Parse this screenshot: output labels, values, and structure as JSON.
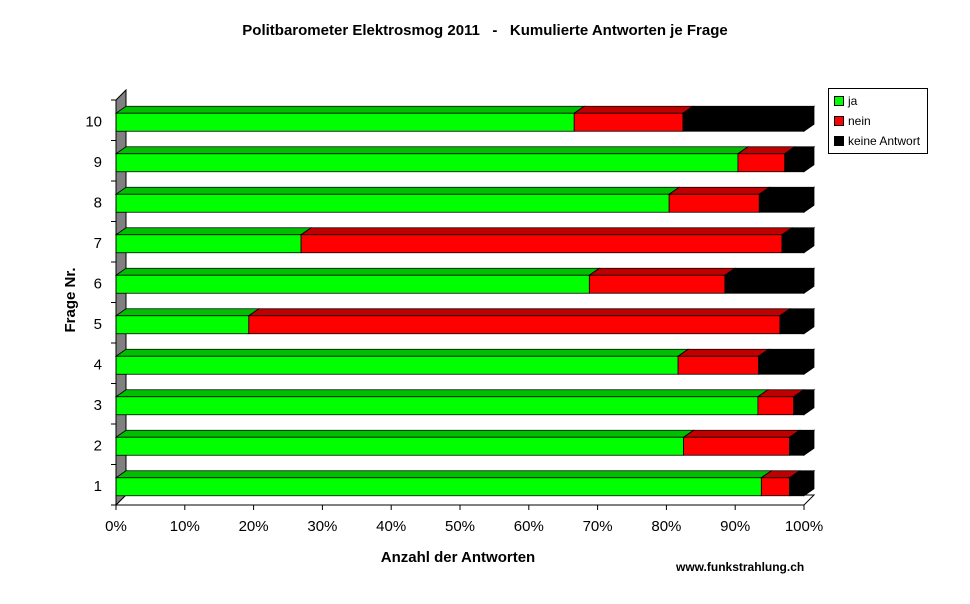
{
  "chart_data": {
    "type": "bar",
    "orientation": "horizontal",
    "stacked": "percent",
    "title": "Politbarometer Elektrosmog 2011   -   Kumulierte Antworten je Frage",
    "xlabel": "Anzahl der Antworten",
    "ylabel": "Frage Nr.",
    "xlim": [
      0,
      100
    ],
    "xticks": [
      "0%",
      "10%",
      "20%",
      "30%",
      "40%",
      "50%",
      "60%",
      "70%",
      "80%",
      "90%",
      "100%"
    ],
    "categories": [
      "1",
      "2",
      "3",
      "4",
      "5",
      "6",
      "7",
      "8",
      "9",
      "10"
    ],
    "series": [
      {
        "name": "ja",
        "color": "#00ff00",
        "values": [
          93.8,
          82.5,
          93.3,
          81.7,
          19.3,
          68.8,
          26.9,
          80.4,
          90.4,
          66.6
        ]
      },
      {
        "name": "nein",
        "color": "#ff0000",
        "values": [
          4.1,
          15.4,
          5.2,
          11.7,
          77.2,
          19.7,
          69.9,
          13.1,
          6.8,
          15.8
        ]
      },
      {
        "name": "keine Antwort",
        "color": "#000000",
        "values": [
          2.1,
          2.1,
          1.5,
          6.6,
          3.5,
          11.5,
          3.2,
          6.5,
          2.8,
          17.6
        ]
      }
    ],
    "legend": "right",
    "grid": false
  },
  "source_text": "www.funkstrahlung.ch"
}
